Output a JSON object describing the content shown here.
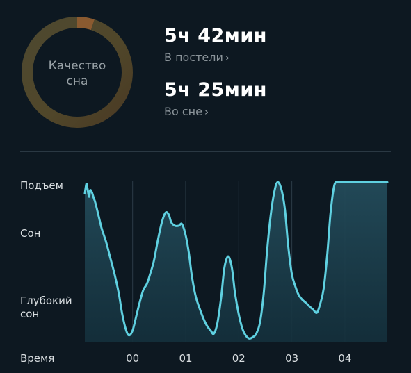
{
  "ring": {
    "label_line1": "Качество",
    "label_line2": "сна",
    "progress_fraction": 0.05,
    "track_color": "#4a4128",
    "progress_color": "#8a5a30"
  },
  "stats": [
    {
      "value": "5ч 42мин",
      "link": "В постели"
    },
    {
      "value": "5ч 25мин",
      "link": "Во сне"
    }
  ],
  "chart_data": {
    "type": "area",
    "y_levels": [
      "Подъем",
      "Сон",
      "Глубокий",
      "сон"
    ],
    "x_axis_title": "Время",
    "x_ticks": [
      "00",
      "01",
      "02",
      "03",
      "04"
    ],
    "x_tick_positions": [
      0,
      1,
      2,
      3,
      4
    ],
    "xlim": [
      -0.9,
      4.8
    ],
    "ylim": [
      0,
      1
    ],
    "line_color": "#5fd0e0",
    "fill_color": "#1f4150",
    "grid": true,
    "series": [
      {
        "x": [
          -0.9,
          -0.87,
          -0.85,
          -0.82,
          -0.8,
          -0.77,
          -0.74,
          -0.7,
          -0.64,
          -0.58,
          -0.5,
          -0.42,
          -0.34,
          -0.26,
          -0.2,
          -0.13,
          -0.07,
          0.0,
          0.07,
          0.13,
          0.2,
          0.27,
          0.33,
          0.4,
          0.47,
          0.55,
          0.62,
          0.68,
          0.73,
          0.8,
          0.87,
          0.93,
          1.0,
          1.06,
          1.12,
          1.19,
          1.27,
          1.34,
          1.4,
          1.47,
          1.53,
          1.6,
          1.67,
          1.73,
          1.8,
          1.87,
          1.93,
          2.0,
          2.07,
          2.13,
          2.2,
          2.27,
          2.33,
          2.4,
          2.47,
          2.53,
          2.6,
          2.67,
          2.73,
          2.8,
          2.87,
          2.93,
          3.0,
          3.07,
          3.13,
          3.2,
          3.27,
          3.33,
          3.4,
          3.47,
          3.53,
          3.6,
          3.67,
          3.73,
          3.8,
          3.87,
          3.93,
          4.0,
          4.07,
          4.13,
          4.2,
          4.27,
          4.33,
          4.4,
          4.47,
          4.53,
          4.6,
          4.67,
          4.73,
          4.8
        ],
        "y": [
          0.92,
          0.98,
          0.95,
          0.9,
          0.94,
          0.93,
          0.9,
          0.86,
          0.78,
          0.7,
          0.62,
          0.52,
          0.42,
          0.3,
          0.18,
          0.08,
          0.04,
          0.07,
          0.16,
          0.24,
          0.32,
          0.36,
          0.42,
          0.5,
          0.62,
          0.74,
          0.8,
          0.79,
          0.74,
          0.72,
          0.72,
          0.73,
          0.66,
          0.55,
          0.4,
          0.28,
          0.2,
          0.14,
          0.1,
          0.07,
          0.05,
          0.12,
          0.28,
          0.46,
          0.53,
          0.46,
          0.3,
          0.17,
          0.08,
          0.04,
          0.02,
          0.03,
          0.05,
          0.12,
          0.3,
          0.55,
          0.78,
          0.93,
          0.99,
          0.95,
          0.82,
          0.6,
          0.42,
          0.34,
          0.29,
          0.26,
          0.24,
          0.22,
          0.2,
          0.18,
          0.23,
          0.33,
          0.55,
          0.8,
          0.97,
          0.99,
          0.99,
          0.99,
          0.99,
          0.99,
          0.99,
          0.99,
          0.99,
          0.99,
          0.99,
          0.99,
          0.99,
          0.99,
          0.99,
          0.99
        ]
      }
    ]
  }
}
